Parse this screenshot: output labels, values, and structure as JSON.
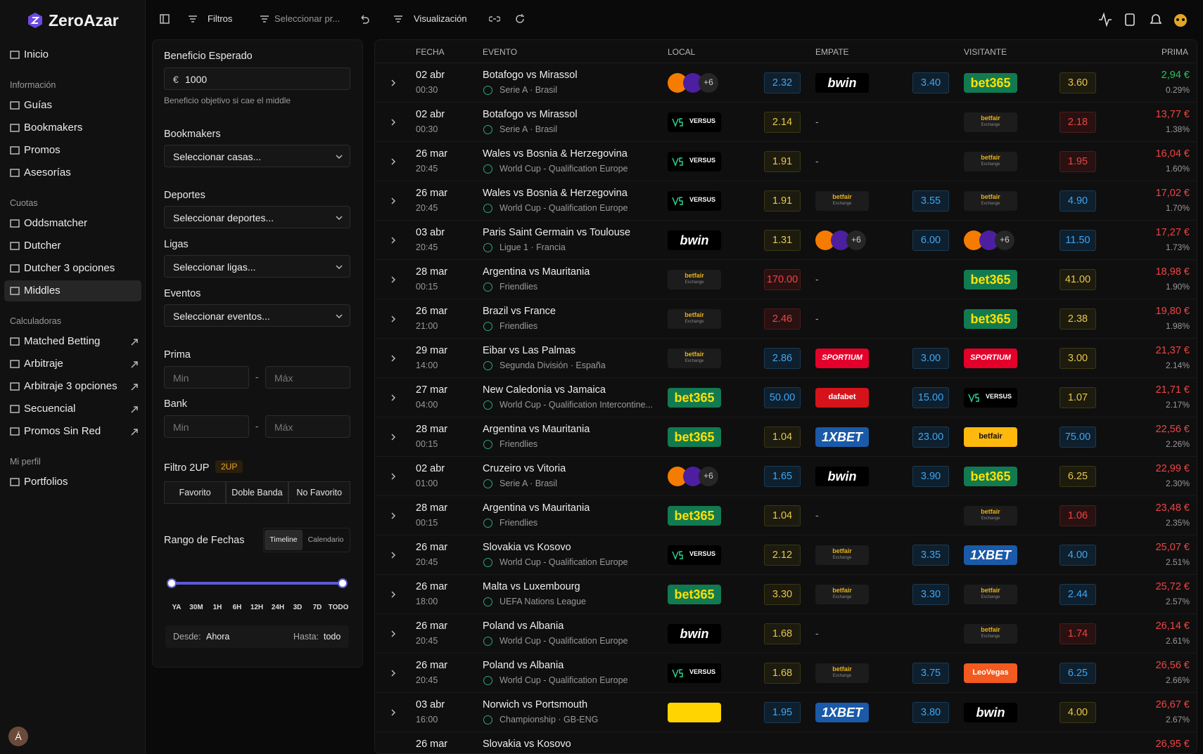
{
  "sidebar": {
    "brand": "ZeroAzar",
    "sections": [
      {
        "items": [
          "Inicio"
        ]
      },
      {
        "title": "Información",
        "items": [
          "Guías",
          "Bookmakers",
          "Promos",
          "Asesorías"
        ]
      },
      {
        "title": "Cuotas",
        "items": [
          "Oddsmatcher",
          "Dutcher",
          "Dutcher 3 opciones",
          "Middles"
        ]
      },
      {
        "title": "Calculadoras",
        "items": [
          "Matched Betting",
          "Arbitraje",
          "Arbitraje 3 opciones",
          "Secuencial",
          "Promos Sin Red"
        ]
      },
      {
        "title": "Mi perfil",
        "items": [
          "Portfolios"
        ]
      }
    ],
    "active": {
      "section": 2,
      "item": 3
    },
    "external_section": 3,
    "avatar": "Á"
  },
  "toolbar": [
    "Filtros",
    "Seleccionar pr...",
    "Visualización"
  ],
  "filters": {
    "profit": {
      "label": "Beneficio Esperado",
      "currency": "€",
      "value": 1000,
      "hint": "Beneficio objetivo si cae el middle"
    },
    "selects": [
      {
        "label": "Bookmakers",
        "placeholder": "Seleccionar casas..."
      },
      {
        "label": "Deportes",
        "placeholder": "Seleccionar deportes..."
      },
      {
        "label": "Ligas",
        "placeholder": "Seleccionar ligas..."
      },
      {
        "label": "Eventos",
        "placeholder": "Seleccionar eventos..."
      }
    ],
    "ranges": [
      {
        "label": "Prima",
        "min": "Min",
        "sep": "-",
        "max": "Máx"
      },
      {
        "label": "Bank",
        "min": "Min",
        "sep": "-",
        "max": "Máx"
      }
    ],
    "twoup": {
      "label": "Filtro 2UP",
      "badge": "2UP",
      "options": [
        "Favorito",
        "Doble Banda",
        "No Favorito"
      ]
    },
    "dates": {
      "label": "Rango de Fechas",
      "tabs": [
        "Timeline",
        "Calendario"
      ],
      "active_tab": 0,
      "ticks": [
        "YA",
        "30M",
        "1H",
        "6H",
        "12H",
        "24H",
        "3D",
        "7D",
        "TODO"
      ],
      "from_label": "Desde:",
      "from": "Ahora",
      "to_label": "Hasta:",
      "to": "todo"
    }
  },
  "tones": {
    "blue": {
      "fg": "#3ea6f2",
      "bg": "#0e1f2e",
      "bd": "#1c3a52"
    },
    "yellow": {
      "fg": "#e9c64a",
      "bg": "#1c1b0e",
      "bd": "#3a3716"
    },
    "red": {
      "fg": "#ef4444",
      "bg": "#2a1111",
      "bd": "#4a1d1d"
    },
    "green": {
      "fg": "#22c55e"
    },
    "redp": {
      "fg": "#ef4444"
    }
  },
  "logos": {
    "multi": {
      "text": "+6",
      "bg": "multi",
      "fg": "#ccc"
    },
    "bwin": {
      "text": "bwin",
      "bg": "#000",
      "fg": "#fff"
    },
    "bet365": {
      "text": "bet365",
      "bg": "#127a50",
      "fg": "#ffe100"
    },
    "versus": {
      "text": "VERSUS",
      "bg": "#000",
      "fg": "#fff"
    },
    "betfair": {
      "text": "betfair",
      "sub": "Exchange",
      "bg": "#1c1c1c",
      "fg": "#e8b21b"
    },
    "betfair_y": {
      "text": "betfair",
      "bg": "#ffb80c",
      "fg": "#111"
    },
    "sportium": {
      "text": "SPORTIUM",
      "bg": "#e4002b",
      "fg": "#fff"
    },
    "dafabet": {
      "text": "dafabet",
      "bg": "#d4141a",
      "fg": "#fff"
    },
    "xbet": {
      "text": "1XBET",
      "bg": "#1a5aa8",
      "fg": "#fff"
    },
    "leovegas": {
      "text": "LeoVegas",
      "bg": "#f25a1f",
      "fg": "#fff"
    },
    "yellow": {
      "bg": "#ffd400"
    }
  },
  "table": {
    "headers": [
      "FECHA",
      "EVENTO",
      "LOCAL",
      "EMPATE",
      "VISITANTE",
      "PRIMA"
    ],
    "rows": [
      {
        "date": "02 abr",
        "time": "00:30",
        "event": "Botafogo vs Mirassol",
        "league": "Serie A · Brasil",
        "local": {
          "book": "multi",
          "odds": "2.32",
          "tone": "blue"
        },
        "draw": {
          "book": "bwin",
          "odds": "3.40",
          "tone": "blue"
        },
        "visit": {
          "book": "bet365",
          "odds": "3.60",
          "tone": "yellow"
        },
        "prima": "2,94 €",
        "pct": "0.29%",
        "tone": "green"
      },
      {
        "date": "02 abr",
        "time": "00:30",
        "event": "Botafogo vs Mirassol",
        "league": "Serie A · Brasil",
        "local": {
          "book": "versus",
          "odds": "2.14",
          "tone": "yellow"
        },
        "draw": "-",
        "visit": {
          "book": "betfair",
          "odds": "2.18",
          "tone": "red"
        },
        "prima": "13,77 €",
        "pct": "1.38%",
        "tone": "redp"
      },
      {
        "date": "26 mar",
        "time": "20:45",
        "event": "Wales vs Bosnia & Herzegovina",
        "league": "World Cup - Qualification Europe",
        "local": {
          "book": "versus",
          "odds": "1.91",
          "tone": "yellow"
        },
        "draw": "-",
        "visit": {
          "book": "betfair",
          "odds": "1.95",
          "tone": "red"
        },
        "prima": "16,04 €",
        "pct": "1.60%",
        "tone": "redp"
      },
      {
        "date": "26 mar",
        "time": "20:45",
        "event": "Wales vs Bosnia & Herzegovina",
        "league": "World Cup - Qualification Europe",
        "local": {
          "book": "versus",
          "odds": "1.91",
          "tone": "yellow"
        },
        "draw": {
          "book": "betfair",
          "odds": "3.55",
          "tone": "blue"
        },
        "visit": {
          "book": "betfair",
          "odds": "4.90",
          "tone": "blue"
        },
        "prima": "17,02 €",
        "pct": "1.70%",
        "tone": "redp"
      },
      {
        "date": "03 abr",
        "time": "20:45",
        "event": "Paris Saint Germain vs Toulouse",
        "league": "Ligue 1 · Francia",
        "local": {
          "book": "bwin",
          "odds": "1.31",
          "tone": "yellow"
        },
        "draw": {
          "book": "multi",
          "odds": "6.00",
          "tone": "blue"
        },
        "visit": {
          "book": "multi",
          "odds": "11.50",
          "tone": "blue"
        },
        "prima": "17,27 €",
        "pct": "1.73%",
        "tone": "redp"
      },
      {
        "date": "28 mar",
        "time": "00:15",
        "event": "Argentina vs Mauritania",
        "league": "Friendlies",
        "local": {
          "book": "betfair",
          "odds": "170.00",
          "tone": "red"
        },
        "draw": "-",
        "visit": {
          "book": "bet365",
          "odds": "41.00",
          "tone": "yellow"
        },
        "prima": "18,98 €",
        "pct": "1.90%",
        "tone": "redp"
      },
      {
        "date": "26 mar",
        "time": "21:00",
        "event": "Brazil vs France",
        "league": "Friendlies",
        "local": {
          "book": "betfair",
          "odds": "2.46",
          "tone": "red"
        },
        "draw": "-",
        "visit": {
          "book": "bet365",
          "odds": "2.38",
          "tone": "yellow"
        },
        "prima": "19,80 €",
        "pct": "1.98%",
        "tone": "redp"
      },
      {
        "date": "29 mar",
        "time": "14:00",
        "event": "Eibar vs Las Palmas",
        "league": "Segunda División · España",
        "local": {
          "book": "betfair",
          "odds": "2.86",
          "tone": "blue"
        },
        "draw": {
          "book": "sportium",
          "odds": "3.00",
          "tone": "blue"
        },
        "visit": {
          "book": "sportium",
          "odds": "3.00",
          "tone": "yellow"
        },
        "prima": "21,37 €",
        "pct": "2.14%",
        "tone": "redp"
      },
      {
        "date": "27 mar",
        "time": "04:00",
        "event": "New Caledonia vs Jamaica",
        "league": "World Cup - Qualification Intercontine...",
        "local": {
          "book": "bet365",
          "odds": "50.00",
          "tone": "blue"
        },
        "draw": {
          "book": "dafabet",
          "odds": "15.00",
          "tone": "blue"
        },
        "visit": {
          "book": "versus",
          "odds": "1.07",
          "tone": "yellow"
        },
        "prima": "21,71 €",
        "pct": "2.17%",
        "tone": "redp"
      },
      {
        "date": "28 mar",
        "time": "00:15",
        "event": "Argentina vs Mauritania",
        "league": "Friendlies",
        "local": {
          "book": "bet365",
          "odds": "1.04",
          "tone": "yellow"
        },
        "draw": {
          "book": "xbet",
          "odds": "23.00",
          "tone": "blue"
        },
        "visit": {
          "book": "betfair_y",
          "odds": "75.00",
          "tone": "blue"
        },
        "prima": "22,56 €",
        "pct": "2.26%",
        "tone": "redp"
      },
      {
        "date": "02 abr",
        "time": "01:00",
        "event": "Cruzeiro vs Vitoria",
        "league": "Serie A · Brasil",
        "local": {
          "book": "multi",
          "odds": "1.65",
          "tone": "blue"
        },
        "draw": {
          "book": "bwin",
          "odds": "3.90",
          "tone": "blue"
        },
        "visit": {
          "book": "bet365",
          "odds": "6.25",
          "tone": "yellow"
        },
        "prima": "22,99 €",
        "pct": "2.30%",
        "tone": "redp"
      },
      {
        "date": "28 mar",
        "time": "00:15",
        "event": "Argentina vs Mauritania",
        "league": "Friendlies",
        "local": {
          "book": "bet365",
          "odds": "1.04",
          "tone": "yellow"
        },
        "draw": "-",
        "visit": {
          "book": "betfair",
          "odds": "1.06",
          "tone": "red"
        },
        "prima": "23,48 €",
        "pct": "2.35%",
        "tone": "redp"
      },
      {
        "date": "26 mar",
        "time": "20:45",
        "event": "Slovakia vs Kosovo",
        "league": "World Cup - Qualification Europe",
        "local": {
          "book": "versus",
          "odds": "2.12",
          "tone": "yellow"
        },
        "draw": {
          "book": "betfair",
          "odds": "3.35",
          "tone": "blue"
        },
        "visit": {
          "book": "xbet",
          "odds": "4.00",
          "tone": "blue"
        },
        "prima": "25,07 €",
        "pct": "2.51%",
        "tone": "redp"
      },
      {
        "date": "26 mar",
        "time": "18:00",
        "event": "Malta vs Luxembourg",
        "league": "UEFA Nations League",
        "local": {
          "book": "bet365",
          "odds": "3.30",
          "tone": "yellow"
        },
        "draw": {
          "book": "betfair",
          "odds": "3.30",
          "tone": "blue"
        },
        "visit": {
          "book": "betfair",
          "odds": "2.44",
          "tone": "blue"
        },
        "prima": "25,72 €",
        "pct": "2.57%",
        "tone": "redp"
      },
      {
        "date": "26 mar",
        "time": "20:45",
        "event": "Poland vs Albania",
        "league": "World Cup - Qualification Europe",
        "local": {
          "book": "bwin",
          "odds": "1.68",
          "tone": "yellow"
        },
        "draw": "-",
        "visit": {
          "book": "betfair",
          "odds": "1.74",
          "tone": "red"
        },
        "prima": "26,14 €",
        "pct": "2.61%",
        "tone": "redp"
      },
      {
        "date": "26 mar",
        "time": "20:45",
        "event": "Poland vs Albania",
        "league": "World Cup - Qualification Europe",
        "local": {
          "book": "versus",
          "odds": "1.68",
          "tone": "yellow"
        },
        "draw": {
          "book": "betfair",
          "odds": "3.75",
          "tone": "blue"
        },
        "visit": {
          "book": "leovegas",
          "odds": "6.25",
          "tone": "blue"
        },
        "prima": "26,56 €",
        "pct": "2.66%",
        "tone": "redp"
      },
      {
        "date": "03 abr",
        "time": "16:00",
        "event": "Norwich vs Portsmouth",
        "league": "Championship · GB-ENG",
        "local": {
          "book": "yellow",
          "odds": "1.95",
          "tone": "blue"
        },
        "draw": {
          "book": "xbet",
          "odds": "3.80",
          "tone": "blue"
        },
        "visit": {
          "book": "bwin",
          "odds": "4.00",
          "tone": "yellow"
        },
        "prima": "26,67 €",
        "pct": "2.67%",
        "tone": "green_hidden"
      },
      {
        "date": "26 mar",
        "event": "Slovakia vs Kosovo",
        "prima": "26,95 €",
        "tone": "redp"
      }
    ]
  }
}
